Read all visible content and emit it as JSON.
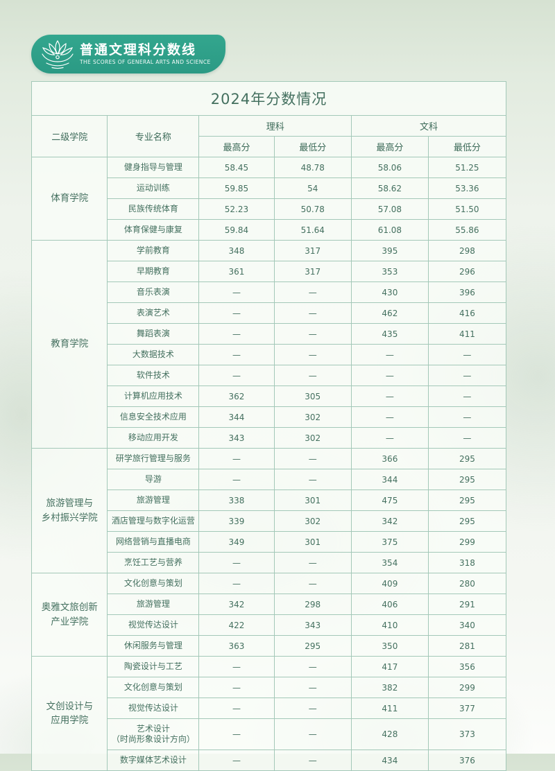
{
  "banner": {
    "title": "普通文理科分数线",
    "subtitle": "THE SCORES OF GENERAL ARTS AND SCIENCE",
    "icon": "lotus-icon"
  },
  "colors": {
    "accent": "#33a68e",
    "accent-dark": "#2b9a84",
    "border": "#a3c8b8",
    "heading": "#2d6b55",
    "heading-soft": "#3c6a58",
    "text": "#44705f"
  },
  "table": {
    "title": "2024年分数情况",
    "headers": {
      "college": "二级学院",
      "major": "专业名称",
      "science": "理科",
      "arts": "文科",
      "max": "最高分",
      "min": "最低分"
    },
    "groups": [
      {
        "college": "体育学院",
        "rows": [
          {
            "major": "健身指导与管理",
            "scores": [
              "58.45",
              "48.78",
              "58.06",
              "51.25"
            ]
          },
          {
            "major": "运动训练",
            "scores": [
              "59.85",
              "54",
              "58.62",
              "53.36"
            ]
          },
          {
            "major": "民族传统体育",
            "scores": [
              "52.23",
              "50.78",
              "57.08",
              "51.50"
            ]
          },
          {
            "major": "体育保健与康复",
            "scores": [
              "59.84",
              "51.64",
              "61.08",
              "55.86"
            ]
          }
        ]
      },
      {
        "college": "教育学院",
        "rows": [
          {
            "major": "学前教育",
            "scores": [
              "348",
              "317",
              "395",
              "298"
            ]
          },
          {
            "major": "早期教育",
            "scores": [
              "361",
              "317",
              "353",
              "296"
            ]
          },
          {
            "major": "音乐表演",
            "scores": [
              "—",
              "—",
              "430",
              "396"
            ]
          },
          {
            "major": "表演艺术",
            "scores": [
              "—",
              "—",
              "462",
              "416"
            ]
          },
          {
            "major": "舞蹈表演",
            "scores": [
              "—",
              "—",
              "435",
              "411"
            ]
          },
          {
            "major": "大数据技术",
            "scores": [
              "—",
              "—",
              "—",
              "—"
            ]
          },
          {
            "major": "软件技术",
            "scores": [
              "—",
              "—",
              "—",
              "—"
            ]
          },
          {
            "major": "计算机应用技术",
            "scores": [
              "362",
              "305",
              "—",
              "—"
            ]
          },
          {
            "major": "信息安全技术应用",
            "scores": [
              "344",
              "302",
              "—",
              "—"
            ]
          },
          {
            "major": "移动应用开发",
            "scores": [
              "343",
              "302",
              "—",
              "—"
            ]
          }
        ]
      },
      {
        "college": "旅游管理与\n乡村振兴学院",
        "rows": [
          {
            "major": "研学旅行管理与服务",
            "scores": [
              "—",
              "—",
              "366",
              "295"
            ]
          },
          {
            "major": "导游",
            "scores": [
              "—",
              "—",
              "344",
              "295"
            ]
          },
          {
            "major": "旅游管理",
            "scores": [
              "338",
              "301",
              "475",
              "295"
            ]
          },
          {
            "major": "酒店管理与数字化运营",
            "scores": [
              "339",
              "302",
              "342",
              "295"
            ]
          },
          {
            "major": "网络营销与直播电商",
            "scores": [
              "349",
              "301",
              "375",
              "299"
            ]
          },
          {
            "major": "烹饪工艺与营养",
            "scores": [
              "—",
              "—",
              "354",
              "318"
            ]
          }
        ]
      },
      {
        "college": "奥雅文旅创新\n产业学院",
        "rows": [
          {
            "major": "文化创意与策划",
            "scores": [
              "—",
              "—",
              "409",
              "280"
            ]
          },
          {
            "major": "旅游管理",
            "scores": [
              "342",
              "298",
              "406",
              "291"
            ]
          },
          {
            "major": "视觉传达设计",
            "scores": [
              "422",
              "343",
              "410",
              "340"
            ]
          },
          {
            "major": "休闲服务与管理",
            "scores": [
              "363",
              "295",
              "350",
              "281"
            ]
          }
        ]
      },
      {
        "college": "文创设计与\n应用学院",
        "rows": [
          {
            "major": "陶瓷设计与工艺",
            "scores": [
              "—",
              "—",
              "417",
              "356"
            ]
          },
          {
            "major": "文化创意与策划",
            "scores": [
              "—",
              "—",
              "382",
              "299"
            ]
          },
          {
            "major": "视觉传达设计",
            "scores": [
              "—",
              "—",
              "411",
              "377"
            ]
          },
          {
            "major": "艺术设计\n（时尚形象设计方向）",
            "scores": [
              "—",
              "—",
              "428",
              "373"
            ]
          },
          {
            "major": "数字媒体艺术设计",
            "scores": [
              "—",
              "—",
              "434",
              "376"
            ]
          }
        ]
      }
    ]
  }
}
